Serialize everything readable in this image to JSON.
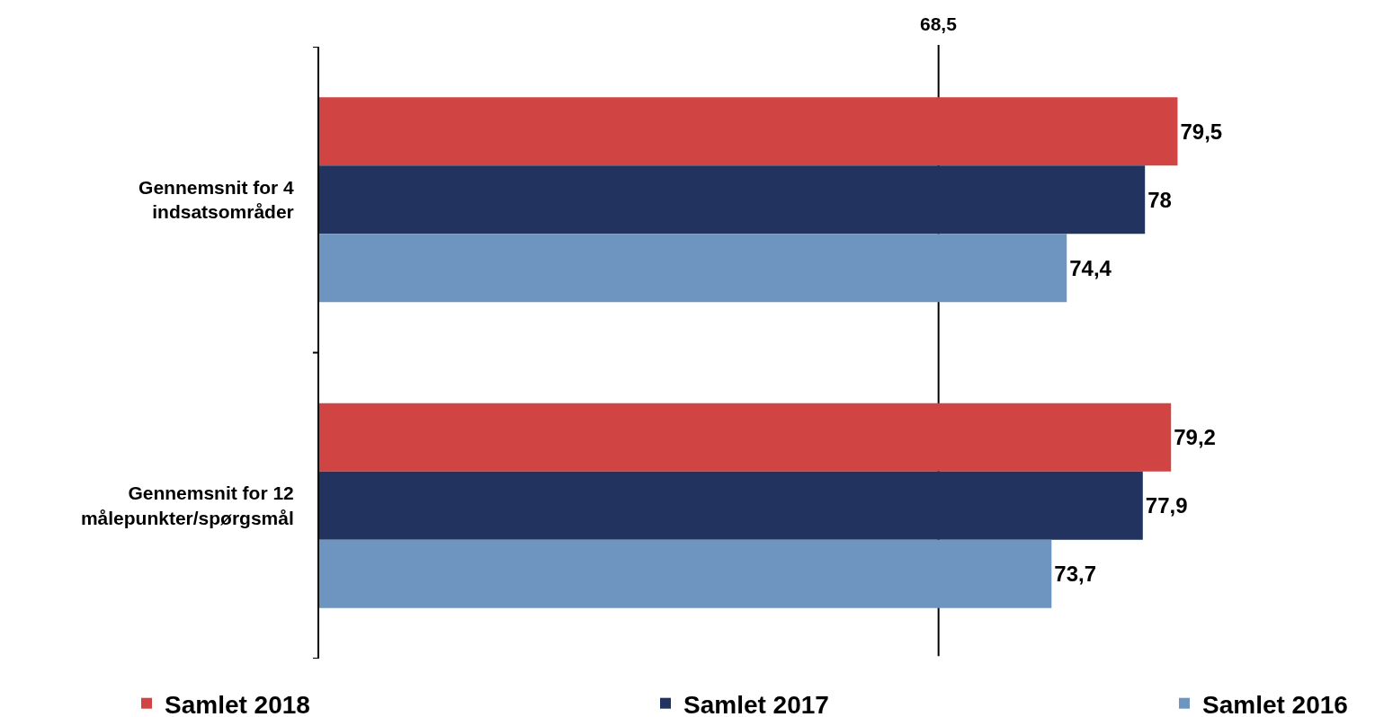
{
  "chart_data": {
    "type": "bar",
    "orientation": "horizontal",
    "categories": [
      "Gennemsnit for 4 indsatsområder",
      "Gennemsnit for 12 målepunkter/spørgsmål"
    ],
    "series": [
      {
        "name": "Samlet 2018",
        "color": "#d04444",
        "values": [
          79.5,
          79.2
        ],
        "value_labels": [
          "79,5",
          "79,2"
        ]
      },
      {
        "name": "Samlet 2017",
        "color": "#21335e",
        "values": [
          78,
          77.9
        ],
        "value_labels": [
          "78",
          "77,9"
        ]
      },
      {
        "name": "Samlet 2016",
        "color": "#6e95c0",
        "values": [
          74.4,
          73.7
        ],
        "value_labels": [
          "74,4",
          "73,7"
        ]
      }
    ],
    "xlim": [
      40,
      89
    ],
    "tick_labels": "y",
    "ref_lines": [
      {
        "axis": "x",
        "value": 68.5,
        "label": "68,5",
        "color": "#000000"
      }
    ],
    "legend": "bottom"
  }
}
